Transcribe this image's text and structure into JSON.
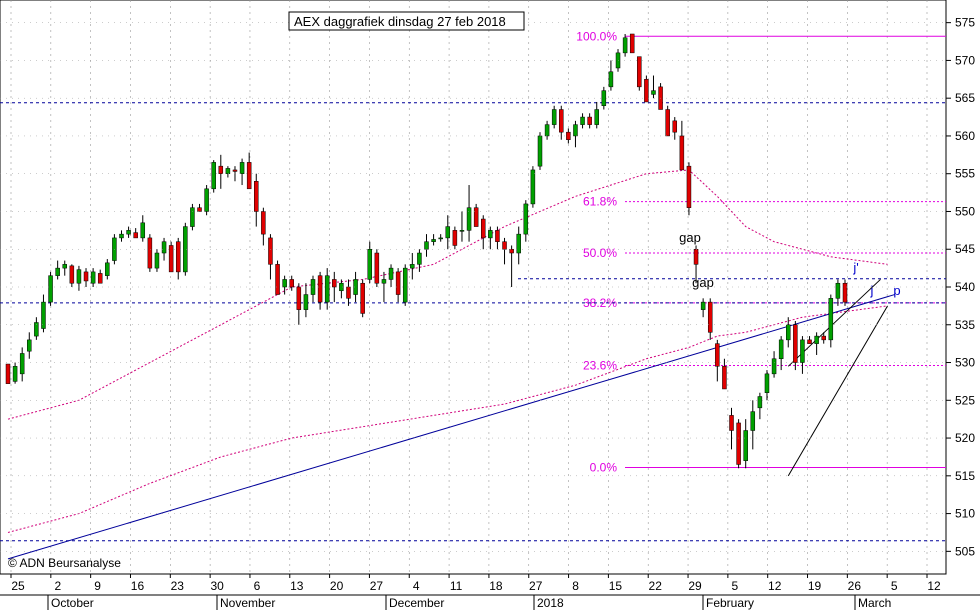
{
  "chart_data": {
    "type": "candlestick",
    "title": "AEX daggrafiek dinsdag 27 feb 2018",
    "watermark": "© ADN Beursanalyse",
    "ylim": [
      502,
      578
    ],
    "y_ticks": [
      505,
      510,
      515,
      520,
      525,
      530,
      535,
      540,
      545,
      550,
      555,
      560,
      565,
      570,
      575
    ],
    "x_day_ticks": [
      "25",
      "2",
      "9",
      "16",
      "23",
      "30",
      "6",
      "13",
      "20",
      "27",
      "4",
      "11",
      "18",
      "27",
      "8",
      "15",
      "22",
      "29",
      "5",
      "12",
      "19",
      "26",
      "5",
      "12"
    ],
    "month_labels": [
      "October",
      "November",
      "December",
      "2018",
      "February",
      "March"
    ],
    "colors": {
      "up": "#00a000",
      "down": "#e00000",
      "fib": "#e000e0",
      "trend": "#00009a",
      "ma": "#d0007a",
      "grid": "#9a9a9a",
      "text_fib": "#e000e0",
      "label_blue": "#0000cc"
    },
    "candles": [
      [
        529.8,
        529.0,
        527.2,
        528.2
      ],
      [
        527.5,
        527.2,
        529.5,
        530.0
      ],
      [
        528.5,
        527.5,
        531.2,
        532.0
      ],
      [
        531.5,
        530.5,
        533.0,
        534.0
      ],
      [
        533.5,
        533.0,
        535.3,
        536.0
      ],
      [
        534.5,
        534.0,
        538.0,
        539.0
      ],
      [
        538.0,
        537.5,
        541.5,
        542.0
      ],
      [
        541.5,
        541.0,
        542.5,
        543.5
      ],
      [
        542.5,
        541.5,
        543.0,
        543.5
      ],
      [
        542.8,
        540.0,
        540.5,
        543.0
      ],
      [
        540.5,
        539.5,
        542.3,
        542.8
      ],
      [
        542.0,
        540.0,
        540.8,
        542.5
      ],
      [
        540.5,
        540.0,
        542.0,
        542.5
      ],
      [
        541.8,
        540.5,
        540.5,
        542.3
      ],
      [
        541.5,
        541.0,
        543.2,
        543.7
      ],
      [
        543.5,
        543.0,
        546.5,
        547.0
      ],
      [
        546.5,
        546.0,
        547.0,
        547.5
      ],
      [
        547.0,
        546.5,
        547.5,
        548.0
      ],
      [
        547.2,
        546.8,
        546.5,
        547.8
      ],
      [
        546.5,
        546.0,
        548.5,
        549.5
      ],
      [
        546.5,
        542.0,
        542.5,
        547.0
      ],
      [
        542.5,
        542.0,
        544.5,
        545.0
      ],
      [
        544.5,
        543.5,
        546.0,
        546.5
      ],
      [
        545.5,
        544.0,
        542.0,
        546.0
      ],
      [
        546.0,
        541.0,
        542.0,
        546.5
      ],
      [
        542.0,
        541.5,
        548.0,
        548.5
      ],
      [
        548.0,
        547.5,
        550.5,
        551.0
      ],
      [
        550.5,
        550.0,
        550.0,
        551.0
      ],
      [
        550.0,
        549.5,
        553.0,
        553.5
      ],
      [
        553.0,
        552.5,
        556.5,
        556.8
      ],
      [
        556.0,
        553.0,
        555.0,
        557.5
      ],
      [
        555.0,
        554.5,
        555.7,
        556.0
      ],
      [
        555.5,
        554.0,
        555.3,
        556.0
      ],
      [
        555.0,
        553.5,
        556.5,
        557.0
      ],
      [
        556.5,
        555.5,
        553.0,
        557.8
      ],
      [
        554.0,
        548.0,
        550.0,
        555.0
      ],
      [
        550.0,
        545.5,
        547.0,
        550.5
      ],
      [
        546.5,
        541.0,
        543.0,
        547.0
      ],
      [
        543.0,
        540.0,
        539.0,
        543.5
      ],
      [
        540.0,
        539.0,
        541.0,
        541.5
      ],
      [
        541.0,
        539.5,
        540.0,
        541.5
      ],
      [
        540.0,
        535.0,
        537.0,
        540.5
      ],
      [
        537.0,
        536.0,
        539.0,
        540.5
      ],
      [
        539.0,
        538.0,
        541.0,
        541.5
      ],
      [
        541.5,
        537.0,
        538.0,
        542.0
      ],
      [
        538.0,
        537.0,
        541.5,
        542.5
      ],
      [
        541.0,
        538.0,
        540.0,
        542.0
      ],
      [
        539.5,
        538.5,
        540.5,
        541.0
      ],
      [
        540.0,
        537.5,
        538.5,
        541.0
      ],
      [
        539.0,
        538.0,
        541.0,
        542.0
      ],
      [
        540.5,
        536.0,
        536.5,
        541.0
      ],
      [
        541.0,
        540.5,
        545.0,
        546.0
      ],
      [
        544.5,
        540.0,
        540.5,
        545.0
      ],
      [
        540.5,
        538.0,
        541.0,
        542.0
      ],
      [
        541.0,
        540.0,
        542.5,
        543.0
      ],
      [
        542.0,
        538.0,
        539.0,
        542.5
      ],
      [
        538.0,
        537.5,
        542.5,
        543.0
      ],
      [
        542.5,
        541.0,
        543.0,
        544.5
      ],
      [
        543.0,
        542.0,
        544.5,
        545.0
      ],
      [
        545.0,
        544.0,
        546.0,
        547.0
      ],
      [
        546.0,
        545.5,
        546.3,
        547.0
      ],
      [
        546.5,
        546.0,
        546.5,
        547.0
      ],
      [
        546.5,
        545.0,
        548.0,
        549.5
      ],
      [
        547.5,
        545.0,
        545.5,
        548.0
      ],
      [
        547.5,
        546.0,
        547.5,
        550.0
      ],
      [
        547.5,
        546.0,
        550.5,
        553.5
      ],
      [
        550.5,
        548.0,
        548.0,
        551.0
      ],
      [
        549.0,
        545.0,
        546.5,
        549.5
      ],
      [
        546.5,
        545.0,
        547.5,
        548.0
      ],
      [
        547.5,
        545.0,
        546.0,
        548.0
      ],
      [
        546.0,
        543.0,
        545.0,
        546.5
      ],
      [
        545.0,
        540.0,
        544.5,
        545.5
      ],
      [
        544.5,
        543.0,
        547.0,
        548.0
      ],
      [
        547.0,
        546.0,
        551.0,
        551.5
      ],
      [
        551.0,
        550.5,
        555.5,
        556.0
      ],
      [
        556.0,
        555.5,
        560.0,
        560.5
      ],
      [
        560.0,
        559.5,
        561.5,
        562.0
      ],
      [
        561.5,
        561.0,
        563.5,
        564.0
      ],
      [
        563.5,
        559.5,
        560.5,
        564.0
      ],
      [
        560.5,
        559.0,
        559.5,
        561.0
      ],
      [
        560.0,
        558.5,
        561.5,
        562.0
      ],
      [
        561.5,
        561.0,
        562.5,
        563.0
      ],
      [
        562.5,
        561.0,
        561.5,
        563.0
      ],
      [
        561.5,
        561.0,
        563.5,
        564.5
      ],
      [
        564.0,
        563.5,
        566.0,
        566.5
      ],
      [
        566.5,
        566.0,
        568.5,
        570.0
      ],
      [
        569.0,
        568.5,
        571.0,
        571.5
      ],
      [
        571.0,
        570.5,
        573.0,
        573.5
      ],
      [
        573.5,
        571.0,
        571.0,
        573.5
      ],
      [
        570.5,
        566.0,
        566.5,
        570.5
      ],
      [
        567.5,
        565.0,
        564.5,
        568.0
      ],
      [
        565.5,
        565.0,
        566.0,
        568.0
      ],
      [
        566.5,
        563.5,
        563.5,
        567.0
      ],
      [
        563.5,
        561.5,
        560.0,
        564.0
      ],
      [
        562.0,
        559.5,
        560.5,
        562.5
      ],
      [
        560.0,
        557.5,
        555.5,
        562.0
      ],
      [
        556.0,
        549.5,
        550.5,
        556.5
      ],
      [
        545.0,
        540.5,
        543.0,
        545.5
      ],
      [
        537.0,
        536.0,
        538.0,
        538.5
      ],
      [
        538.0,
        533.0,
        534.0,
        538.5
      ],
      [
        532.5,
        527.5,
        529.5,
        533.0
      ],
      [
        529.5,
        526.5,
        526.5,
        530.5
      ],
      [
        523.0,
        518.5,
        521.0,
        524.0
      ],
      [
        522.0,
        516.0,
        516.5,
        522.5
      ],
      [
        517.0,
        516.0,
        521.0,
        522.5
      ],
      [
        521.0,
        518.5,
        523.5,
        525.0
      ],
      [
        524.0,
        522.5,
        525.5,
        526.0
      ],
      [
        526.0,
        525.0,
        528.5,
        529.0
      ],
      [
        528.5,
        528.0,
        530.5,
        531.5
      ],
      [
        530.5,
        529.0,
        533.0,
        533.5
      ],
      [
        533.0,
        532.0,
        535.0,
        536.0
      ],
      [
        535.0,
        529.0,
        530.0,
        535.5
      ],
      [
        530.0,
        528.5,
        533.0,
        533.5
      ],
      [
        533.0,
        532.5,
        532.5,
        533.5
      ],
      [
        532.5,
        531.0,
        533.5,
        534.0
      ],
      [
        533.5,
        532.5,
        533.0,
        534.0
      ],
      [
        533.0,
        532.0,
        538.5,
        539.0
      ],
      [
        538.5,
        537.5,
        540.5,
        541.0
      ],
      [
        540.5,
        537.5,
        538.0,
        541.0
      ]
    ],
    "fib_levels": [
      {
        "label": "100.0%",
        "value": 573.2
      },
      {
        "label": "61.8%",
        "value": 551.3
      },
      {
        "label": "50.0%",
        "value": 544.5
      },
      {
        "label": "38.2%",
        "value": 537.9
      },
      {
        "label": "23.6%",
        "value": 529.6
      },
      {
        "label": "0.0%",
        "value": 516.1
      }
    ],
    "horizontal_lines": [
      564.4,
      541.1,
      506.4
    ],
    "annotations": [
      {
        "text": "gap",
        "y": 546.5
      },
      {
        "text": "gap",
        "y": 540.5
      },
      {
        "text": "j'",
        "y": 542.5
      },
      {
        "text": "j",
        "y": 539.5
      },
      {
        "text": "p",
        "y": 539.5
      }
    ],
    "trendlines": [
      {
        "from": [
          0,
          504
        ],
        "to": [
          125,
          539
        ]
      },
      {
        "from": [
          110,
          529.5
        ],
        "to": [
          123,
          541
        ]
      },
      {
        "from": [
          110,
          515
        ],
        "to": [
          124,
          537.5
        ]
      }
    ],
    "moving_averages": [
      {
        "name": "ma-short",
        "values": [
          [
            0,
            522.5
          ],
          [
            10,
            525
          ],
          [
            20,
            530
          ],
          [
            30,
            535
          ],
          [
            40,
            540
          ],
          [
            50,
            541
          ],
          [
            60,
            543
          ],
          [
            70,
            548
          ],
          [
            80,
            552
          ],
          [
            90,
            555
          ],
          [
            96,
            555.5
          ],
          [
            100,
            552
          ],
          [
            104,
            548
          ],
          [
            108,
            546
          ],
          [
            112,
            545
          ],
          [
            116,
            544
          ],
          [
            120,
            543.5
          ],
          [
            124,
            543
          ]
        ]
      },
      {
        "name": "ma-long",
        "values": [
          [
            0,
            507.5
          ],
          [
            10,
            510
          ],
          [
            20,
            514
          ],
          [
            30,
            517.5
          ],
          [
            40,
            520
          ],
          [
            50,
            521.5
          ],
          [
            60,
            523
          ],
          [
            70,
            524.5
          ],
          [
            80,
            527
          ],
          [
            90,
            530.5
          ],
          [
            96,
            532
          ],
          [
            100,
            533.5
          ],
          [
            104,
            534
          ],
          [
            108,
            535
          ],
          [
            112,
            536
          ],
          [
            116,
            536.5
          ],
          [
            120,
            537
          ],
          [
            124,
            537.5
          ]
        ]
      }
    ]
  }
}
